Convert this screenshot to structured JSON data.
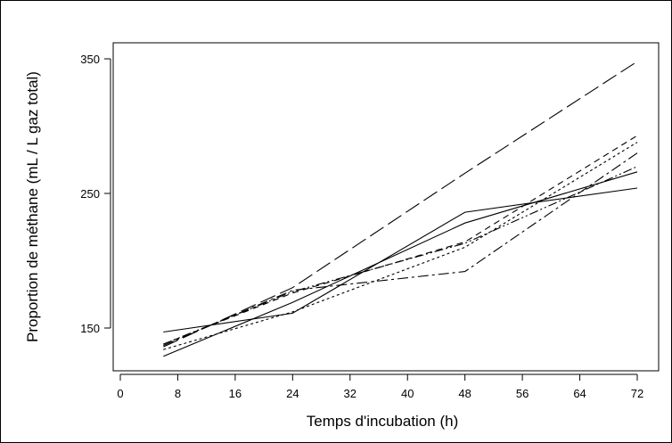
{
  "chart_data": {
    "type": "line",
    "title": "",
    "xlabel": "Temps d'incubation (h)",
    "ylabel": "Proportion de méthane (mL / L gaz total)",
    "xlim": [
      0,
      72
    ],
    "ylim": [
      110,
      355
    ],
    "xticks": [
      0,
      8,
      16,
      24,
      32,
      40,
      48,
      56,
      64,
      72
    ],
    "yticks": [
      150,
      250,
      350
    ],
    "grid": false,
    "legend": "none",
    "x": [
      6,
      24,
      48,
      72
    ],
    "series": [
      {
        "values": [
          136,
          180,
          265,
          348
        ],
        "dash": "18,6",
        "color": "#000000"
      },
      {
        "values": [
          147,
          161,
          236,
          254
        ],
        "dash": "",
        "color": "#000000"
      },
      {
        "values": [
          129,
          169,
          228,
          266
        ],
        "dash": "",
        "color": "#000000"
      },
      {
        "values": [
          138,
          176,
          214,
          293
        ],
        "dash": "7,5",
        "color": "#000000"
      },
      {
        "values": [
          134,
          162,
          210,
          288
        ],
        "dash": "3,3",
        "color": "#000000"
      },
      {
        "values": [
          137,
          178,
          192,
          280
        ],
        "dash": "12,4,3,4",
        "color": "#000000"
      },
      {
        "values": [
          138,
          177,
          213,
          270
        ],
        "dash": "10,3,2,3,2,3",
        "color": "#000000"
      }
    ]
  }
}
